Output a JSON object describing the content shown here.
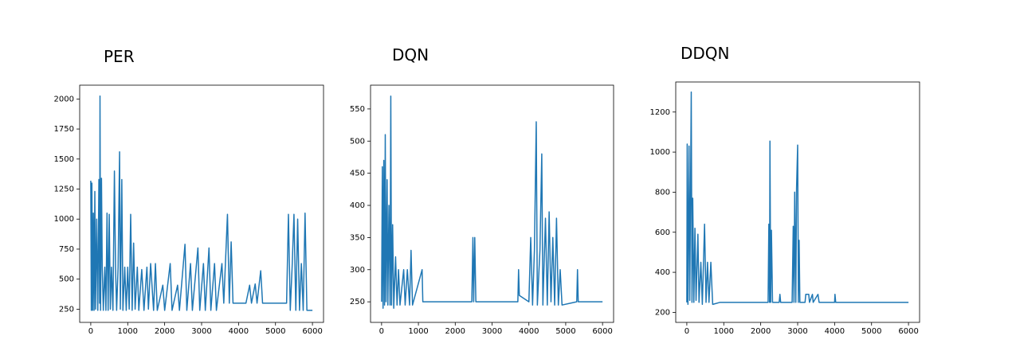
{
  "chart_data": [
    {
      "type": "line",
      "title": "PER",
      "color": "#1f77b4",
      "xlim": [
        -300,
        6300
      ],
      "xticks": [
        0,
        1000,
        2000,
        3000,
        4000,
        5000,
        6000
      ],
      "ylim": [
        140,
        2115
      ],
      "yticks": [
        250,
        500,
        750,
        1000,
        1250,
        1500,
        1750,
        2000
      ],
      "x": [
        0,
        15,
        30,
        50,
        70,
        90,
        110,
        130,
        160,
        190,
        220,
        240,
        250,
        265,
        290,
        310,
        340,
        380,
        410,
        440,
        470,
        500,
        530,
        560,
        600,
        640,
        670,
        700,
        740,
        780,
        800,
        840,
        870,
        920,
        960,
        1000,
        1040,
        1080,
        1120,
        1160,
        1200,
        1260,
        1300,
        1380,
        1440,
        1520,
        1560,
        1620,
        1700,
        1750,
        1800,
        1950,
        2000,
        2150,
        2200,
        2350,
        2400,
        2550,
        2600,
        2700,
        2750,
        2900,
        2950,
        3050,
        3100,
        3200,
        3250,
        3350,
        3400,
        3550,
        3600,
        3700,
        3750,
        3800,
        3850,
        4200,
        4300,
        4350,
        4450,
        4500,
        4600,
        4650,
        5300,
        5350,
        5400,
        5450,
        5500,
        5550,
        5600,
        5650,
        5700,
        5750,
        5800,
        5850,
        6000
      ],
      "values": [
        1320,
        240,
        1300,
        240,
        1050,
        240,
        1230,
        250,
        1000,
        240,
        1330,
        300,
        2025,
        240,
        1340,
        600,
        240,
        600,
        240,
        1050,
        240,
        1040,
        250,
        600,
        240,
        1400,
        600,
        240,
        600,
        1560,
        250,
        1330,
        240,
        600,
        240,
        600,
        250,
        1040,
        240,
        800,
        250,
        600,
        240,
        580,
        240,
        600,
        250,
        630,
        240,
        630,
        240,
        450,
        240,
        630,
        240,
        450,
        240,
        790,
        240,
        630,
        240,
        760,
        240,
        630,
        240,
        760,
        240,
        630,
        240,
        630,
        300,
        1040,
        300,
        810,
        300,
        300,
        450,
        300,
        460,
        300,
        570,
        300,
        300,
        1040,
        240,
        600,
        1040,
        240,
        1000,
        240,
        630,
        240,
        1050,
        240,
        240
      ]
    },
    {
      "type": "line",
      "title": "DQN",
      "color": "#1f77b4",
      "xlim": [
        -300,
        6300
      ],
      "xticks": [
        0,
        1000,
        2000,
        3000,
        4000,
        5000,
        6000
      ],
      "ylim": [
        218,
        587
      ],
      "yticks": [
        250,
        300,
        350,
        400,
        450,
        500,
        550
      ],
      "x": [
        0,
        20,
        40,
        60,
        80,
        100,
        120,
        150,
        170,
        200,
        230,
        250,
        270,
        300,
        330,
        380,
        420,
        460,
        500,
        600,
        640,
        700,
        760,
        800,
        840,
        1100,
        1120,
        2450,
        2480,
        2500,
        2530,
        2560,
        3700,
        3720,
        3740,
        4000,
        4050,
        4100,
        4150,
        4200,
        4230,
        4300,
        4350,
        4380,
        4450,
        4500,
        4550,
        4600,
        4650,
        4700,
        4750,
        4800,
        4850,
        4900,
        5300,
        5320,
        5340,
        6000
      ],
      "values": [
        250,
        460,
        240,
        470,
        245,
        510,
        250,
        440,
        245,
        400,
        245,
        570,
        245,
        370,
        240,
        320,
        245,
        300,
        245,
        300,
        245,
        300,
        245,
        330,
        245,
        300,
        250,
        250,
        350,
        250,
        350,
        250,
        250,
        300,
        260,
        250,
        350,
        245,
        330,
        530,
        245,
        330,
        480,
        245,
        380,
        245,
        390,
        250,
        350,
        245,
        380,
        245,
        300,
        245,
        250,
        300,
        250,
        250
      ]
    },
    {
      "type": "line",
      "title": "DDQN",
      "color": "#1f77b4",
      "xlim": [
        -300,
        6300
      ],
      "xticks": [
        0,
        1000,
        2000,
        3000,
        4000,
        5000,
        6000
      ],
      "ylim": [
        150,
        1350
      ],
      "yticks": [
        200,
        400,
        600,
        800,
        1000,
        1200
      ],
      "x": [
        0,
        10,
        30,
        60,
        80,
        100,
        120,
        140,
        160,
        190,
        220,
        250,
        300,
        330,
        380,
        420,
        480,
        520,
        560,
        600,
        650,
        700,
        900,
        2200,
        2220,
        2240,
        2250,
        2270,
        2290,
        2320,
        2500,
        2520,
        2540,
        2850,
        2880,
        2900,
        2920,
        2950,
        2970,
        3000,
        3020,
        3040,
        3060,
        3200,
        3220,
        3300,
        3320,
        3400,
        3420,
        3550,
        3580,
        4000,
        4010,
        4030,
        6000
      ],
      "values": [
        250,
        1040,
        240,
        1030,
        260,
        790,
        1300,
        250,
        770,
        250,
        620,
        260,
        590,
        250,
        450,
        240,
        640,
        250,
        450,
        250,
        450,
        240,
        250,
        250,
        640,
        250,
        1055,
        250,
        610,
        250,
        250,
        290,
        250,
        250,
        630,
        250,
        800,
        250,
        820,
        1035,
        250,
        560,
        250,
        250,
        290,
        290,
        250,
        290,
        250,
        290,
        250,
        250,
        290,
        250,
        250
      ]
    }
  ]
}
